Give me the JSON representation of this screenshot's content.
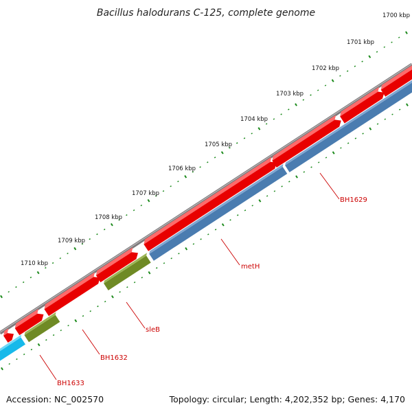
{
  "title": "Bacillus halodurans C-125, complete genome",
  "accession_text": "Accession: NC_002570",
  "stats_text": "Topology: circular; Length: 4,202,352 bp; Genes: 4,170",
  "ruler": [
    {
      "label": "1700 kbp",
      "pos": 1700
    },
    {
      "label": "1701 kbp",
      "pos": 1701
    },
    {
      "label": "1702 kbp",
      "pos": 1702
    },
    {
      "label": "1703 kbp",
      "pos": 1703
    },
    {
      "label": "1704 kbp",
      "pos": 1704
    },
    {
      "label": "1705 kbp",
      "pos": 1705
    },
    {
      "label": "1706 kbp",
      "pos": 1706
    },
    {
      "label": "1707 kbp",
      "pos": 1707
    },
    {
      "label": "1708 kbp",
      "pos": 1708
    },
    {
      "label": "1709 kbp",
      "pos": 1709
    },
    {
      "label": "1710 kbp",
      "pos": 1710
    }
  ],
  "gene_labels": [
    {
      "name": "BH1629"
    },
    {
      "name": "metH"
    },
    {
      "name": "sleB"
    },
    {
      "name": "BH1632"
    },
    {
      "name": "BH1633"
    }
  ],
  "colors": {
    "backbone": "#7d7a7c",
    "cds_forward": "#e80000",
    "cds_reverse": "#4a7cb0",
    "gene_green": "#6f8a25",
    "gene_cyan": "#17b9ea",
    "tick_green": "#1c8a1c",
    "label_red": "#cc0000"
  }
}
